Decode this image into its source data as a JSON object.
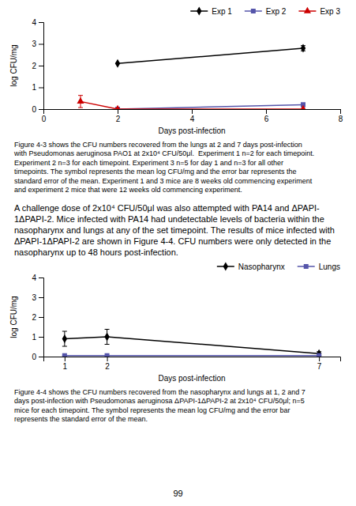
{
  "chart_data": [
    {
      "type": "line",
      "xlabel": "Days post-infection",
      "ylabel": "log CFU/mg",
      "xlim": [
        0,
        8
      ],
      "ylim": [
        0,
        4
      ],
      "xticks": [
        0,
        2,
        4,
        6,
        8
      ],
      "yticks": [
        0,
        1,
        2,
        3,
        4
      ],
      "grid": false,
      "legend": "top",
      "series": [
        {
          "name": "Exp 1",
          "color": "#000000",
          "marker": "diamond",
          "line_style": "solid",
          "x": [
            2,
            7
          ],
          "values": [
            2.1,
            2.8
          ],
          "errors": [
            0.0,
            0.12
          ]
        },
        {
          "name": "Exp 2",
          "color": "#5555aa",
          "marker": "square",
          "line_style": "solid",
          "x": [
            2,
            7
          ],
          "values": [
            0.0,
            0.2
          ],
          "errors": [
            0.0,
            0.09
          ]
        },
        {
          "name": "Exp 3",
          "color": "#cc0000",
          "marker": "triangle",
          "line_style": "solid",
          "x": [
            1,
            2,
            7
          ],
          "values": [
            0.35,
            0.0,
            0.0
          ],
          "errors": [
            0.28,
            0.0,
            0.0
          ]
        }
      ],
      "caption": [
        "Figure 4-3 shows the CFU numbers recovered from the lungs at 2 and 7 days post-infection",
        "with Pseudomonas aeruginosa PAO1 at 2x10⁴ CFU/50μl.  Experiment 1 n=2 for each timepoint.",
        "Experiment 2 n=3 for each timepoint. Experiment 3 n=5 for day 1 and n=3 for all other",
        "timepoints. The symbol represents the mean log CFU/mg and the error bar represents the",
        "standard error of the mean. Experiment 1 and 3 mice are 8 weeks old commencing experiment",
        "and experiment 2 mice that were 12 weeks old commencing experiment."
      ]
    },
    {
      "type": "line",
      "xlabel": "Days post-infection",
      "ylabel": "log CFU/mg",
      "xlim": [
        0.5,
        7.5
      ],
      "ylim": [
        0,
        4
      ],
      "xticks": [
        1,
        2,
        7
      ],
      "yticks": [
        0,
        1,
        2,
        3,
        4
      ],
      "grid": false,
      "legend": "top",
      "series": [
        {
          "name": "Nasopharynx",
          "color": "#000000",
          "marker": "diamond",
          "line_style": "solid",
          "x": [
            1,
            2,
            7
          ],
          "values": [
            0.9,
            1.0,
            0.15
          ],
          "errors": [
            0.38,
            0.38,
            0.1
          ]
        },
        {
          "name": "Lungs",
          "color": "#5555aa",
          "marker": "square",
          "line_style": "solid",
          "x": [
            1,
            2,
            7
          ],
          "values": [
            0.05,
            0.05,
            0.05
          ],
          "errors": [
            0.0,
            0.0,
            0.0
          ]
        }
      ],
      "caption": [
        "Figure 4-4 shows the CFU numbers recovered from the nasopharynx and lungs at 1, 2 and 7",
        "days post-infection with Pseudomonas aeruginosa ΔPAPI-1ΔPAPI-2 at 2x10⁴ CFU/50μl; n=5",
        "mice for each timepoint. The symbol represents the mean log CFU/mg and the error bar",
        "represents the standard error of the mean."
      ]
    }
  ],
  "paragraph": [
    "A challenge dose of 2x10⁴ CFU/50μl was also attempted with PA14 and ΔPAPI-",
    "1ΔPAPI-2. Mice infected with PA14 had undetectable levels of bacteria within the",
    "nasopharynx and lungs at any of the set timepoint. The results of mice infected with",
    "ΔPAPI-1ΔPAPI-2 are shown in Figure 4-4. CFU numbers were only detected in the",
    "nasopharynx up to 48 hours post-infection."
  ],
  "page_number": "99"
}
